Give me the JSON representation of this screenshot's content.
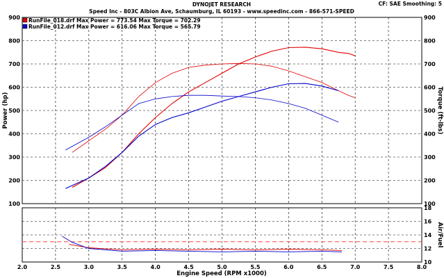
{
  "header": {
    "title": "DYNOJET RESEARCH",
    "address": "Speed Inc - 803C Albion Ave, Schaumburg, IL 60193 - www.speedinc.com - 866-571-SPEED",
    "settings": "CF: SAE  Smoothing: 5"
  },
  "legend": [
    {
      "text": "RunFile_018.drf Max Power = 773.54    Max Torque = 702.29",
      "color": "#e00000"
    },
    {
      "text": "RunFile_012.drf Max Power = 616.06    Max Torque = 565.79",
      "color": "#0000cc"
    }
  ],
  "colors": {
    "run_018": "#e00000",
    "run_012": "#0000cc",
    "afr_target": "#ff6666"
  },
  "chart_data": [
    {
      "type": "line",
      "x": {
        "label": "Engine Speed (RPM x1000)",
        "range": [
          2.0,
          8.0
        ],
        "ticks": [
          "2.0",
          "2.5",
          "3.0",
          "3.5",
          "4.0",
          "4.5",
          "5.0",
          "5.5",
          "6.0",
          "6.5",
          "7.0",
          "7.5",
          "8.0"
        ]
      },
      "y_left": {
        "label": "Power (hp)",
        "range": [
          100,
          900
        ],
        "ticks": [
          "100",
          "200",
          "300",
          "400",
          "500",
          "600",
          "700",
          "800",
          "900"
        ]
      },
      "y_right": {
        "label": "Torque (ft-lbs)",
        "range": [
          100,
          900
        ],
        "ticks": [
          "100",
          "200",
          "300",
          "400",
          "500",
          "600",
          "700",
          "800",
          "900"
        ]
      },
      "grid": true,
      "series": [
        {
          "name": "RunFile_018.drf",
          "measure": "power",
          "color": "#e00000",
          "x": [
            2.75,
            3.0,
            3.25,
            3.5,
            3.75,
            4.0,
            4.25,
            4.5,
            4.75,
            5.0,
            5.25,
            5.5,
            5.75,
            6.0,
            6.25,
            6.5,
            6.75,
            6.9,
            7.0
          ],
          "y": [
            170,
            210,
            255,
            320,
            400,
            470,
            530,
            580,
            620,
            660,
            700,
            730,
            755,
            770,
            772,
            765,
            750,
            745,
            735
          ]
        },
        {
          "name": "RunFile_018.drf",
          "measure": "torque",
          "color": "#e00000",
          "x": [
            2.75,
            3.0,
            3.25,
            3.5,
            3.75,
            4.0,
            4.25,
            4.5,
            4.75,
            5.0,
            5.25,
            5.5,
            5.75,
            6.0,
            6.25,
            6.5,
            6.75,
            6.9,
            7.0
          ],
          "y": [
            320,
            370,
            420,
            480,
            560,
            620,
            660,
            685,
            695,
            700,
            702,
            700,
            690,
            670,
            645,
            620,
            585,
            565,
            555
          ]
        },
        {
          "name": "RunFile_012.drf",
          "measure": "power",
          "color": "#0000cc",
          "x": [
            2.65,
            3.0,
            3.25,
            3.5,
            3.75,
            4.0,
            4.25,
            4.5,
            4.75,
            5.0,
            5.25,
            5.5,
            5.75,
            6.0,
            6.25,
            6.5,
            6.75
          ],
          "y": [
            165,
            210,
            260,
            320,
            390,
            440,
            470,
            490,
            515,
            540,
            560,
            580,
            600,
            615,
            616,
            605,
            585
          ]
        },
        {
          "name": "RunFile_012.drf",
          "measure": "torque",
          "color": "#0000cc",
          "x": [
            2.65,
            3.0,
            3.25,
            3.5,
            3.75,
            4.0,
            4.25,
            4.5,
            4.75,
            5.0,
            5.25,
            5.5,
            5.75,
            6.0,
            6.25,
            6.5,
            6.75
          ],
          "y": [
            330,
            385,
            430,
            480,
            530,
            550,
            560,
            565,
            565,
            562,
            560,
            555,
            545,
            530,
            510,
            480,
            450
          ]
        }
      ]
    },
    {
      "type": "line",
      "x": {
        "label": "Engine Speed (RPM x1000)",
        "range": [
          2.0,
          8.0
        ]
      },
      "y_right": {
        "label": "Air/Fuel",
        "range": [
          10,
          18
        ],
        "ticks": [
          "10",
          "12",
          "14",
          "16",
          "18"
        ]
      },
      "grid": true,
      "target_afr": 13.0,
      "series": [
        {
          "name": "RunFile_018.drf",
          "measure": "air_fuel",
          "color": "#e00000",
          "x": [
            2.7,
            3.0,
            3.5,
            4.0,
            4.5,
            5.0,
            5.5,
            6.0,
            6.5,
            6.8
          ],
          "y": [
            12.6,
            12.1,
            11.8,
            11.9,
            11.8,
            11.9,
            11.8,
            11.9,
            11.8,
            11.7
          ]
        },
        {
          "name": "RunFile_012.drf",
          "measure": "air_fuel",
          "color": "#0000cc",
          "x": [
            2.6,
            2.75,
            3.0,
            3.5,
            4.0,
            4.5,
            5.0,
            5.5,
            6.0,
            6.5,
            6.8
          ],
          "y": [
            13.8,
            12.9,
            12.0,
            11.6,
            11.7,
            11.6,
            11.5,
            11.6,
            11.5,
            11.6,
            11.5
          ]
        }
      ]
    }
  ]
}
